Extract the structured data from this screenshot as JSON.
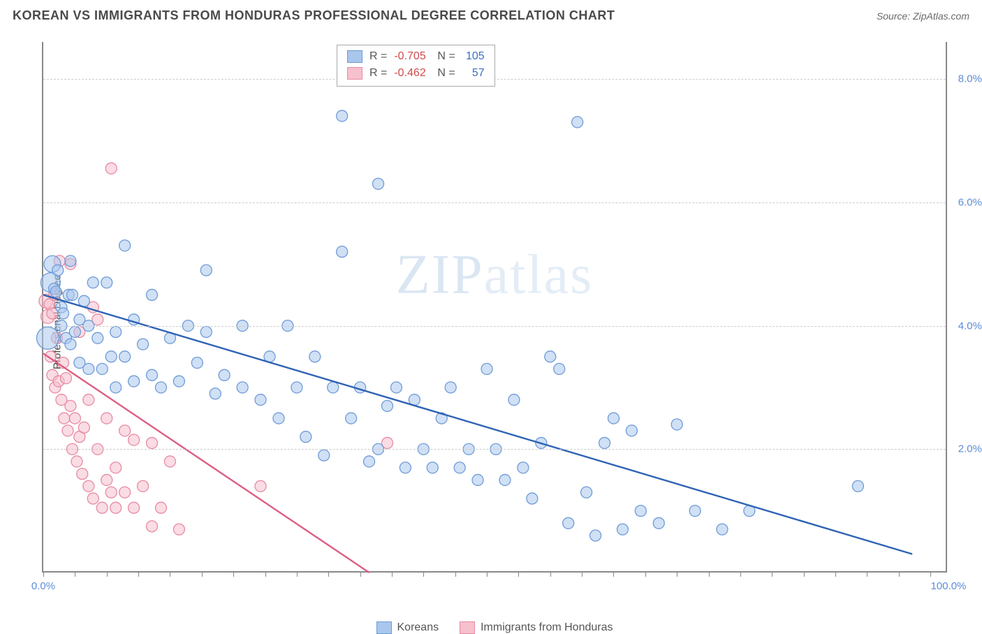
{
  "header": {
    "title": "KOREAN VS IMMIGRANTS FROM HONDURAS PROFESSIONAL DEGREE CORRELATION CHART",
    "source_prefix": "Source: ",
    "source": "ZipAtlas.com"
  },
  "ylabel": "Professional Degree",
  "watermark": {
    "a": "ZIP",
    "b": "atlas"
  },
  "chart": {
    "xlim": [
      0,
      100
    ],
    "ylim": [
      0,
      8.6
    ],
    "yticks": [
      {
        "v": 2.0,
        "label": "2.0%"
      },
      {
        "v": 4.0,
        "label": "4.0%"
      },
      {
        "v": 6.0,
        "label": "6.0%"
      },
      {
        "v": 8.0,
        "label": "8.0%"
      }
    ],
    "xticks_major": [
      0,
      100
    ],
    "xtick_labels": {
      "start": "0.0%",
      "end": "100.0%"
    },
    "xticks_minor": [
      0,
      3.5,
      7,
      10.5,
      14,
      17.5,
      21,
      24.5,
      28,
      31.5,
      35,
      38.5,
      42,
      45.5,
      49,
      52.5,
      56,
      59.5,
      63,
      66.5,
      70,
      73.5,
      77,
      80.5,
      84,
      87.5,
      91,
      94.5,
      98
    ],
    "grid_color": "#cccccc",
    "axis_color": "#888888",
    "background": "#ffffff",
    "series": {
      "blue": {
        "name": "Koreans",
        "fill": "#a9c6ec",
        "stroke": "#6f9bd8",
        "line_color": "#2f63b5",
        "opacity": 0.55,
        "trend": {
          "x1": 0,
          "y1": 4.5,
          "x2": 96,
          "y2": 0.3
        },
        "points": [
          [
            0.5,
            3.8,
            16
          ],
          [
            0.8,
            4.7,
            14
          ],
          [
            1.0,
            5.0,
            12
          ],
          [
            1.2,
            4.6,
            8
          ],
          [
            1.4,
            4.55,
            8
          ],
          [
            1.6,
            4.9,
            8
          ],
          [
            2,
            4.3,
            8
          ],
          [
            2,
            4.0,
            8
          ],
          [
            2.2,
            4.2,
            8
          ],
          [
            2.5,
            3.8,
            8
          ],
          [
            2.8,
            4.5,
            8
          ],
          [
            3,
            5.05,
            8
          ],
          [
            3,
            3.7,
            8
          ],
          [
            3.2,
            4.5,
            8
          ],
          [
            3.5,
            3.9,
            8
          ],
          [
            4,
            4.1,
            8
          ],
          [
            4,
            3.4,
            8
          ],
          [
            4.5,
            4.4,
            8
          ],
          [
            5,
            4.0,
            8
          ],
          [
            5,
            3.3,
            8
          ],
          [
            5.5,
            4.7,
            8
          ],
          [
            6,
            3.8,
            8
          ],
          [
            6.5,
            3.3,
            8
          ],
          [
            7,
            4.7,
            8
          ],
          [
            7.5,
            3.5,
            8
          ],
          [
            8,
            3.9,
            8
          ],
          [
            8,
            3.0,
            8
          ],
          [
            9,
            3.5,
            8
          ],
          [
            9,
            5.3,
            8
          ],
          [
            10,
            4.1,
            8
          ],
          [
            10,
            3.1,
            8
          ],
          [
            11,
            3.7,
            8
          ],
          [
            12,
            3.2,
            8
          ],
          [
            12,
            4.5,
            8
          ],
          [
            13,
            3.0,
            8
          ],
          [
            14,
            3.8,
            8
          ],
          [
            15,
            3.1,
            8
          ],
          [
            16,
            4.0,
            8
          ],
          [
            17,
            3.4,
            8
          ],
          [
            18,
            3.9,
            8
          ],
          [
            18,
            4.9,
            8
          ],
          [
            19,
            2.9,
            8
          ],
          [
            20,
            3.2,
            8
          ],
          [
            22,
            3.0,
            8
          ],
          [
            22,
            4.0,
            8
          ],
          [
            24,
            2.8,
            8
          ],
          [
            25,
            3.5,
            8
          ],
          [
            26,
            2.5,
            8
          ],
          [
            27,
            4.0,
            8
          ],
          [
            28,
            3.0,
            8
          ],
          [
            29,
            2.2,
            8
          ],
          [
            30,
            3.5,
            8
          ],
          [
            31,
            1.9,
            8
          ],
          [
            32,
            3.0,
            8
          ],
          [
            33,
            7.4,
            8
          ],
          [
            33,
            5.2,
            8
          ],
          [
            34,
            2.5,
            8
          ],
          [
            35,
            3.0,
            8
          ],
          [
            36,
            1.8,
            8
          ],
          [
            37,
            2.0,
            8
          ],
          [
            37,
            6.3,
            8
          ],
          [
            38,
            2.7,
            8
          ],
          [
            39,
            3.0,
            8
          ],
          [
            40,
            1.7,
            8
          ],
          [
            41,
            2.8,
            8
          ],
          [
            42,
            2.0,
            8
          ],
          [
            43,
            1.7,
            8
          ],
          [
            44,
            2.5,
            8
          ],
          [
            45,
            3.0,
            8
          ],
          [
            46,
            1.7,
            8
          ],
          [
            47,
            2.0,
            8
          ],
          [
            48,
            1.5,
            8
          ],
          [
            49,
            3.3,
            8
          ],
          [
            50,
            2.0,
            8
          ],
          [
            51,
            1.5,
            8
          ],
          [
            52,
            2.8,
            8
          ],
          [
            53,
            1.7,
            8
          ],
          [
            54,
            1.2,
            8
          ],
          [
            55,
            2.1,
            8
          ],
          [
            56,
            3.5,
            8
          ],
          [
            57,
            3.3,
            8
          ],
          [
            58,
            0.8,
            8
          ],
          [
            59,
            7.3,
            8
          ],
          [
            60,
            1.3,
            8
          ],
          [
            61,
            0.6,
            8
          ],
          [
            62,
            2.1,
            8
          ],
          [
            63,
            2.5,
            8
          ],
          [
            64,
            0.7,
            8
          ],
          [
            65,
            2.3,
            8
          ],
          [
            66,
            1.0,
            8
          ],
          [
            68,
            0.8,
            8
          ],
          [
            70,
            2.4,
            8
          ],
          [
            72,
            1.0,
            8
          ],
          [
            75,
            0.7,
            8
          ],
          [
            78,
            1.0,
            8
          ],
          [
            90,
            1.4,
            8
          ]
        ]
      },
      "pink": {
        "name": "Immigrants from Honduras",
        "fill": "#f6c0cd",
        "stroke": "#e88aa2",
        "line_color": "#dd5e82",
        "opacity": 0.55,
        "trend": {
          "x1": 0,
          "y1": 3.55,
          "x2": 36,
          "y2": 0.0
        },
        "points": [
          [
            0.3,
            4.4,
            10
          ],
          [
            0.5,
            4.15,
            10
          ],
          [
            0.7,
            4.35,
            8
          ],
          [
            0.8,
            3.5,
            8
          ],
          [
            1,
            4.2,
            8
          ],
          [
            1,
            3.2,
            8
          ],
          [
            1.2,
            4.5,
            8
          ],
          [
            1.3,
            3.0,
            8
          ],
          [
            1.5,
            3.8,
            8
          ],
          [
            1.7,
            3.1,
            8
          ],
          [
            1.8,
            5.05,
            8
          ],
          [
            2,
            2.8,
            8
          ],
          [
            2.2,
            3.4,
            8
          ],
          [
            2.3,
            2.5,
            8
          ],
          [
            2.5,
            3.15,
            8
          ],
          [
            2.7,
            2.3,
            8
          ],
          [
            3,
            2.7,
            8
          ],
          [
            3,
            5.0,
            8
          ],
          [
            3.2,
            2.0,
            8
          ],
          [
            3.5,
            2.5,
            8
          ],
          [
            3.7,
            1.8,
            8
          ],
          [
            4,
            2.2,
            8
          ],
          [
            4,
            3.9,
            8
          ],
          [
            4.3,
            1.6,
            8
          ],
          [
            4.5,
            2.35,
            8
          ],
          [
            5,
            1.4,
            8
          ],
          [
            5,
            2.8,
            8
          ],
          [
            5.5,
            4.3,
            8
          ],
          [
            5.5,
            1.2,
            8
          ],
          [
            6,
            2.0,
            8
          ],
          [
            6,
            4.1,
            8
          ],
          [
            6.5,
            1.05,
            8
          ],
          [
            7,
            1.5,
            8
          ],
          [
            7,
            2.5,
            8
          ],
          [
            7.5,
            6.55,
            8
          ],
          [
            7.5,
            1.3,
            8
          ],
          [
            8,
            1.7,
            8
          ],
          [
            8,
            1.05,
            8
          ],
          [
            9,
            1.3,
            8
          ],
          [
            9,
            2.3,
            8
          ],
          [
            10,
            1.05,
            8
          ],
          [
            10,
            2.15,
            8
          ],
          [
            11,
            1.4,
            8
          ],
          [
            12,
            0.75,
            8
          ],
          [
            12,
            2.1,
            8
          ],
          [
            13,
            1.05,
            8
          ],
          [
            14,
            1.8,
            8
          ],
          [
            15,
            0.7,
            8
          ],
          [
            24,
            1.4,
            8
          ],
          [
            38,
            2.1,
            8
          ]
        ]
      }
    }
  },
  "corr_box": [
    {
      "swatch_fill": "#a9c6ec",
      "swatch_stroke": "#6f9bd8",
      "r": "-0.705",
      "n": "105"
    },
    {
      "swatch_fill": "#f6c0cd",
      "swatch_stroke": "#e88aa2",
      "r": "-0.462",
      "n": "57"
    }
  ],
  "corr_labels": {
    "R": "R =",
    "N": "N ="
  },
  "legend": [
    {
      "swatch_fill": "#a9c6ec",
      "swatch_stroke": "#6f9bd8",
      "label": "Koreans"
    },
    {
      "swatch_fill": "#f6c0cd",
      "swatch_stroke": "#e88aa2",
      "label": "Immigrants from Honduras"
    }
  ]
}
